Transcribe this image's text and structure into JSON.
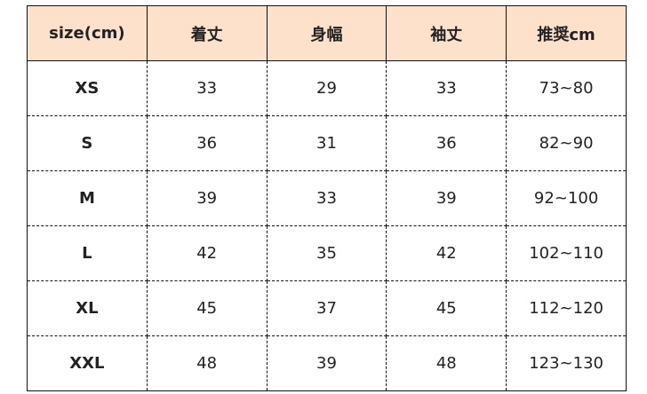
{
  "header_color": "#fde1cb",
  "columns": [
    "size(cm)",
    "着丈",
    "身幅",
    "袖丈",
    "推奨cm"
  ],
  "rows": [
    [
      "XS",
      "33",
      "29",
      "33",
      "73~80"
    ],
    [
      "S",
      "36",
      "31",
      "36",
      "82~90"
    ],
    [
      "M",
      "39",
      "33",
      "39",
      "92~100"
    ],
    [
      "L",
      "42",
      "35",
      "42",
      "102~110"
    ],
    [
      "XL",
      "45",
      "37",
      "45",
      "112~120"
    ],
    [
      "XXL",
      "48",
      "39",
      "48",
      "123~130"
    ]
  ]
}
